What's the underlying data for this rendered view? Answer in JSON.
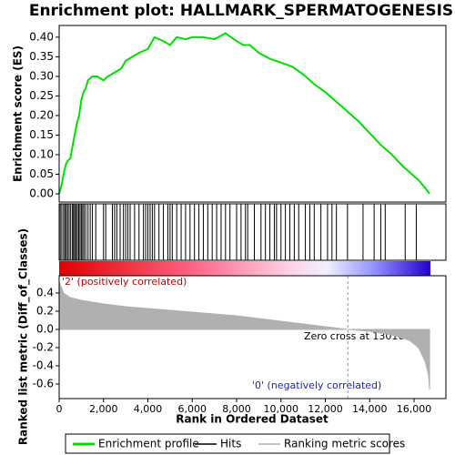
{
  "chart_data": [
    {
      "type": "line",
      "title": "Enrichment plot: HALLMARK_SPERMATOGENESIS",
      "y_label": "Enrichment score (ES)",
      "series": [
        {
          "name": "Enrichment profile",
          "color": "#00e000",
          "x": [
            0,
            100,
            200,
            300,
            400,
            500,
            600,
            700,
            800,
            900,
            1000,
            1100,
            1200,
            1300,
            1500,
            1700,
            2000,
            2200,
            2500,
            2800,
            3000,
            3300,
            3600,
            4000,
            4300,
            4700,
            5000,
            5300,
            5700,
            6000,
            6500,
            7000,
            7500,
            8000,
            8300,
            8600,
            9000,
            9500,
            10000,
            10500,
            11000,
            11500,
            12000,
            12500,
            13000,
            13500,
            14000,
            14500,
            15000,
            15500,
            15800,
            16200,
            16500,
            16700
          ],
          "values": [
            0,
            0.02,
            0.05,
            0.075,
            0.085,
            0.09,
            0.12,
            0.15,
            0.18,
            0.2,
            0.24,
            0.26,
            0.27,
            0.29,
            0.3,
            0.3,
            0.29,
            0.3,
            0.31,
            0.32,
            0.34,
            0.35,
            0.36,
            0.37,
            0.4,
            0.39,
            0.38,
            0.4,
            0.395,
            0.4,
            0.4,
            0.395,
            0.41,
            0.39,
            0.38,
            0.38,
            0.36,
            0.345,
            0.335,
            0.325,
            0.305,
            0.28,
            0.26,
            0.235,
            0.21,
            0.185,
            0.155,
            0.125,
            0.1,
            0.07,
            0.055,
            0.035,
            0.015,
            0
          ]
        }
      ],
      "xlim": [
        0,
        17436
      ],
      "ylim": [
        -0.021,
        0.43
      ],
      "yticks": [
        {
          "value": 0,
          "label": "0.00"
        },
        {
          "value": 0.05,
          "label": "0.05"
        },
        {
          "value": 0.1,
          "label": "0.10"
        },
        {
          "value": 0.15,
          "label": "0.15"
        },
        {
          "value": 0.2,
          "label": "0.20"
        },
        {
          "value": 0.25,
          "label": "0.25"
        },
        {
          "value": 0.3,
          "label": "0.30"
        },
        {
          "value": 0.35,
          "label": "0.35"
        },
        {
          "value": 0.4,
          "label": "0.40"
        }
      ]
    },
    {
      "type": "event",
      "series": [
        {
          "name": "Hits",
          "color": "#000000",
          "x": [
            50,
            120,
            200,
            260,
            320,
            380,
            450,
            520,
            600,
            650,
            700,
            760,
            820,
            880,
            940,
            1000,
            1060,
            1120,
            1200,
            1300,
            1400,
            1500,
            1650,
            2000,
            2100,
            2400,
            2500,
            2600,
            2750,
            2900,
            3000,
            3100,
            3200,
            3400,
            3600,
            3800,
            3900,
            4000,
            4100,
            4200,
            4300,
            4500,
            4700,
            4900,
            5000,
            5100,
            5300,
            5500,
            5700,
            5900,
            6100,
            6300,
            6500,
            6700,
            6900,
            7100,
            7300,
            7500,
            7700,
            8000,
            8200,
            8400,
            8500,
            8800,
            9100,
            9300,
            9500,
            9700,
            9800,
            10000,
            10200,
            10400,
            10600,
            10800,
            11100,
            11300,
            11500,
            11800,
            12100,
            12300,
            12500,
            13000,
            13700,
            14200,
            14500,
            14700,
            15600,
            16100
          ]
        }
      ],
      "xlim": [
        0,
        17436
      ]
    },
    {
      "type": "area",
      "y_label": "Ranked list metric (Diff_of_Classes)",
      "x_label": "Rank in Ordered Dataset",
      "series": [
        {
          "name": "Ranking metric scores",
          "color": "#b0b0b0",
          "x": [
            0,
            200,
            500,
            1000,
            2000,
            3000,
            4000,
            5000,
            6000,
            7000,
            8000,
            9000,
            10000,
            11000,
            12000,
            13016,
            14000,
            15000,
            15800,
            16200,
            16500,
            16650,
            16700
          ],
          "values": [
            0.52,
            0.4,
            0.35,
            0.32,
            0.28,
            0.25,
            0.23,
            0.21,
            0.19,
            0.17,
            0.15,
            0.12,
            0.09,
            0.06,
            0.03,
            0,
            -0.02,
            -0.06,
            -0.12,
            -0.2,
            -0.35,
            -0.5,
            -0.66
          ]
        }
      ],
      "zero_cross": 13016,
      "annotations": [
        "'2' (positively correlated)",
        "Zero cross at 13016",
        "'0' (negatively correlated)"
      ],
      "xlim": [
        0,
        17436
      ],
      "ylim": [
        -0.76,
        0.59
      ],
      "yticks": [
        -0.6,
        -0.4,
        -0.2,
        {
          "value": 0,
          "label": "0.0"
        },
        0.2,
        0.4
      ],
      "xticks": [
        0,
        {
          "value": 2000,
          "label": "2,000"
        },
        {
          "value": 4000,
          "label": "4,000"
        },
        {
          "value": 6000,
          "label": "6,000"
        },
        {
          "value": 8000,
          "label": "8,000"
        },
        {
          "value": 10000,
          "label": "10,000"
        },
        {
          "value": 12000,
          "label": "12,000"
        },
        {
          "value": 14000,
          "label": "14,000"
        },
        {
          "value": 16000,
          "label": "16,000"
        }
      ]
    }
  ]
}
